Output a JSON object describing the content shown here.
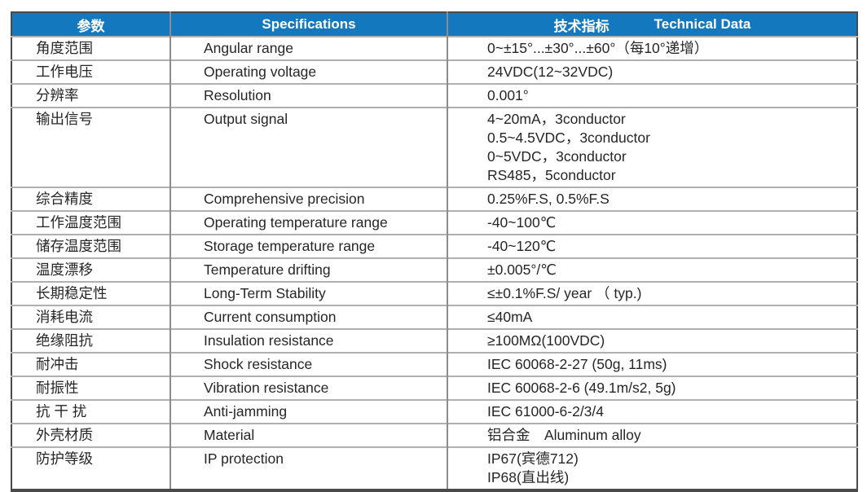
{
  "table": {
    "colors": {
      "header_bg": "#1478BE",
      "header_text": "#FFFFFF",
      "body_text": "#262626",
      "grid_horizontal": "#B0B0B0",
      "grid_vertical": "#8C8C8C",
      "outer_border": "#4A4A4A",
      "page_bg": "#FFFFFF"
    },
    "header": {
      "col1": "参数",
      "col2": "Specifications",
      "col3_cn": "技术指标",
      "col3_en": "Technical Data"
    },
    "rows": [
      {
        "cn": "角度范围",
        "en": "Angular range",
        "value": [
          "0~±15°...±30°...±60°（每10°递增）"
        ]
      },
      {
        "cn": "工作电压",
        "en": "Operating voltage",
        "value": [
          "24VDC(12~32VDC)"
        ]
      },
      {
        "cn": "分辨率",
        "en": "Resolution",
        "value": [
          "0.001°"
        ]
      },
      {
        "cn": "输出信号",
        "en": "Output signal",
        "value": [
          "4~20mA，3conductor",
          "0.5~4.5VDC，3conductor",
          "0~5VDC，3conductor",
          "RS485，5conductor"
        ]
      },
      {
        "cn": "综合精度",
        "en": "Comprehensive precision",
        "value": [
          "0.25%F.S, 0.5%F.S"
        ]
      },
      {
        "cn": "工作温度范围",
        "en": "Operating temperature range",
        "value": [
          "-40~100℃"
        ]
      },
      {
        "cn": "储存温度范围",
        "en": "Storage temperature range",
        "value": [
          "-40~120℃"
        ]
      },
      {
        "cn": "温度漂移",
        "en": "Temperature drifting",
        "value": [
          "±0.005°/℃"
        ]
      },
      {
        "cn": "长期稳定性",
        "en": "Long-Term Stability",
        "value": [
          "≤±0.1%F.S/ year （ typ.)"
        ]
      },
      {
        "cn": "消耗电流",
        "en": "Current consumption",
        "value": [
          "≤40mA"
        ]
      },
      {
        "cn": "绝缘阻抗",
        "en": "Insulation resistance",
        "value": [
          "≥100MΩ(100VDC)"
        ]
      },
      {
        "cn": "耐冲击",
        "en": "Shock resistance",
        "value": [
          "IEC 60068-2-27 (50g, 11ms)"
        ]
      },
      {
        "cn": "耐振性",
        "en": "Vibration resistance",
        "value": [
          "IEC 60068-2-6 (49.1m/s2, 5g)"
        ]
      },
      {
        "cn": "抗 干 扰",
        "en": "Anti-jamming",
        "value": [
          "IEC 61000-6-2/3/4"
        ]
      },
      {
        "cn": "外壳材质",
        "en": "Material",
        "value": [
          "铝合金　Aluminum alloy"
        ]
      },
      {
        "cn": "防护等级",
        "en": "IP protection",
        "value": [
          "IP67(宾德712)",
          "IP68(直出线)"
        ]
      }
    ]
  }
}
